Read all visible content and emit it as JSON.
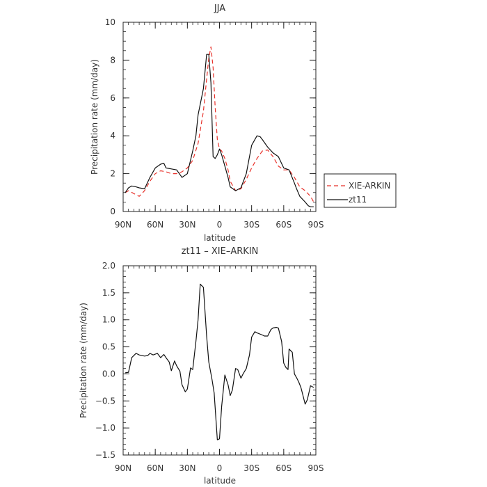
{
  "chart_data": [
    {
      "type": "line",
      "title": "JJA",
      "xlabel": "latitude",
      "ylabel": "Precipitation rate  (mm/day)",
      "xlim": [
        90,
        -90
      ],
      "ylim": [
        0,
        10
      ],
      "xticks": [
        {
          "value": 90,
          "label": "90N"
        },
        {
          "value": 60,
          "label": "60N"
        },
        {
          "value": 30,
          "label": "30N"
        },
        {
          "value": 0,
          "label": "0"
        },
        {
          "value": -30,
          "label": "30S"
        },
        {
          "value": -60,
          "label": "60S"
        },
        {
          "value": -90,
          "label": "90S"
        }
      ],
      "yticks": [
        {
          "value": 0,
          "label": "0"
        },
        {
          "value": 2,
          "label": "2"
        },
        {
          "value": 4,
          "label": "4"
        },
        {
          "value": 6,
          "label": "6"
        },
        {
          "value": 8,
          "label": "8"
        },
        {
          "value": 10,
          "label": "10"
        }
      ],
      "legend_position": "outside-right",
      "series": [
        {
          "name": "XIE-ARKIN",
          "color": "#e8312a",
          "dash": "dashed",
          "x": [
            88,
            85,
            80,
            75,
            70,
            65,
            60,
            55,
            50,
            45,
            40,
            35,
            30,
            25,
            20,
            15,
            12,
            10,
            8,
            6,
            4,
            2,
            0,
            -2,
            -5,
            -8,
            -10,
            -15,
            -20,
            -25,
            -30,
            -35,
            -40,
            -45,
            -50,
            -55,
            -60,
            -65,
            -70,
            -75,
            -80,
            -85,
            -88
          ],
          "y": [
            1.0,
            1.1,
            0.95,
            0.8,
            1.1,
            1.6,
            2.0,
            2.15,
            2.1,
            2.0,
            2.0,
            2.1,
            2.3,
            2.7,
            3.6,
            5.3,
            7.0,
            8.1,
            8.7,
            7.6,
            5.5,
            3.8,
            3.3,
            3.2,
            2.8,
            2.2,
            1.6,
            1.1,
            1.2,
            1.7,
            2.3,
            2.8,
            3.2,
            3.25,
            2.9,
            2.4,
            2.2,
            2.2,
            1.8,
            1.3,
            1.1,
            0.8,
            0.5
          ]
        },
        {
          "name": "zt11",
          "color": "#111111",
          "dash": "solid",
          "x": [
            88,
            85,
            82,
            78,
            75,
            70,
            65,
            60,
            55,
            52,
            50,
            45,
            40,
            35,
            30,
            25,
            22,
            20,
            15,
            12,
            10,
            8,
            6,
            4,
            2,
            0,
            -2,
            -5,
            -8,
            -10,
            -15,
            -20,
            -25,
            -30,
            -35,
            -38,
            -40,
            -45,
            -50,
            -55,
            -60,
            -65,
            -70,
            -72,
            -75,
            -80,
            -83,
            -85,
            -88
          ],
          "y": [
            1.0,
            1.25,
            1.35,
            1.3,
            1.25,
            1.2,
            1.8,
            2.3,
            2.5,
            2.55,
            2.3,
            2.25,
            2.2,
            1.8,
            2.0,
            3.2,
            4.0,
            5.1,
            6.5,
            8.3,
            8.3,
            6.8,
            2.9,
            2.8,
            3.0,
            3.3,
            3.0,
            2.4,
            1.8,
            1.3,
            1.1,
            1.25,
            2.0,
            3.5,
            4.0,
            3.95,
            3.8,
            3.4,
            3.1,
            2.9,
            2.3,
            2.2,
            1.5,
            1.2,
            0.8,
            0.5,
            0.3,
            0.25,
            0.25
          ]
        }
      ]
    },
    {
      "type": "line",
      "title": "zt11  –  XIE–ARKIN",
      "xlabel": "latitude",
      "ylabel": "Precipitation rate  (mm/day)",
      "xlim": [
        90,
        -90
      ],
      "ylim": [
        -1.5,
        2.0
      ],
      "xticks": [
        {
          "value": 90,
          "label": "90N"
        },
        {
          "value": 60,
          "label": "60N"
        },
        {
          "value": 30,
          "label": "30N"
        },
        {
          "value": 0,
          "label": "0"
        },
        {
          "value": -30,
          "label": "30S"
        },
        {
          "value": -60,
          "label": "60S"
        },
        {
          "value": -90,
          "label": "90S"
        }
      ],
      "yticks": [
        {
          "value": -1.5,
          "label": "−1.5"
        },
        {
          "value": -1.0,
          "label": "−1.0"
        },
        {
          "value": -0.5,
          "label": "−0.5"
        },
        {
          "value": 0.0,
          "label": "0.0"
        },
        {
          "value": 0.5,
          "label": "0.5"
        },
        {
          "value": 1.0,
          "label": "1.0"
        },
        {
          "value": 1.5,
          "label": "1.5"
        },
        {
          "value": 2.0,
          "label": "2.0"
        }
      ],
      "series": [
        {
          "color": "#111111",
          "dash": "solid",
          "x": [
            88,
            85,
            82,
            78,
            75,
            70,
            67,
            65,
            62,
            58,
            55,
            52,
            50,
            47,
            45,
            42,
            40,
            37,
            35,
            32,
            30,
            27,
            25,
            22,
            20,
            18,
            15,
            12,
            10,
            7,
            5,
            2,
            0,
            -2,
            -5,
            -8,
            -10,
            -12,
            -15,
            -17,
            -20,
            -22,
            -25,
            -28,
            -30,
            -33,
            -36,
            -40,
            -42,
            -45,
            -48,
            -50,
            -53,
            -55,
            -58,
            -60,
            -62,
            -64,
            -65,
            -68,
            -70,
            -72,
            -74,
            -76,
            -78,
            -80,
            -82,
            -85,
            -88
          ],
          "y": [
            0.02,
            0.03,
            0.3,
            0.38,
            0.35,
            0.33,
            0.34,
            0.38,
            0.35,
            0.38,
            0.3,
            0.36,
            0.3,
            0.22,
            0.06,
            0.24,
            0.15,
            0.05,
            -0.2,
            -0.33,
            -0.28,
            0.11,
            0.08,
            0.6,
            1.0,
            1.66,
            1.6,
            0.7,
            0.22,
            -0.1,
            -0.35,
            -1.22,
            -1.2,
            -0.6,
            -0.02,
            -0.2,
            -0.4,
            -0.3,
            0.1,
            0.08,
            -0.08,
            0.0,
            0.1,
            0.35,
            0.68,
            0.78,
            0.75,
            0.72,
            0.7,
            0.7,
            0.82,
            0.85,
            0.86,
            0.85,
            0.6,
            0.2,
            0.12,
            0.08,
            0.46,
            0.4,
            0.0,
            -0.07,
            -0.15,
            -0.25,
            -0.4,
            -0.56,
            -0.48,
            -0.22,
            -0.25
          ]
        }
      ]
    }
  ]
}
